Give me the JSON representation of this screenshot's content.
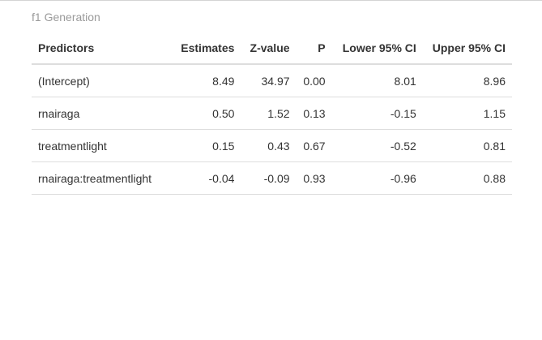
{
  "table": {
    "caption": "f1 Generation",
    "headers": [
      "Predictors",
      "Estimates",
      "Z-value",
      "P",
      "Lower 95% CI",
      "Upper 95% CI"
    ],
    "rows": [
      [
        "(Intercept)",
        "8.49",
        "34.97",
        "0.00",
        "8.01",
        "8.96"
      ],
      [
        "rnairaga",
        "0.50",
        "1.52",
        "0.13",
        "-0.15",
        "1.15"
      ],
      [
        "treatmentlight",
        "0.15",
        "0.43",
        "0.67",
        "-0.52",
        "0.81"
      ],
      [
        "rnairaga:treatmentlight",
        "-0.04",
        "-0.09",
        "0.93",
        "-0.96",
        "0.88"
      ]
    ]
  }
}
